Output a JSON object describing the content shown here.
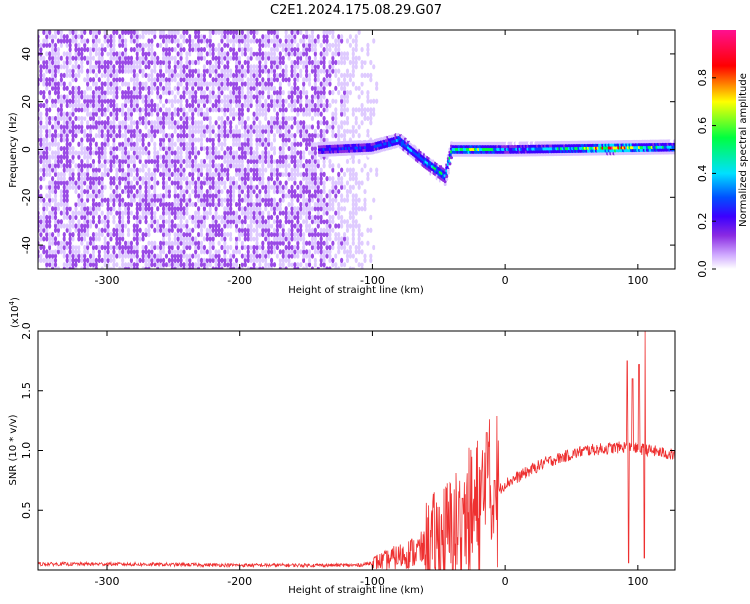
{
  "title": "C2E1.2024.175.08.29.G07",
  "chart_data": [
    {
      "type": "heatmap",
      "xlabel": "Height of straight line (km)",
      "ylabel": "Frequency (Hz)",
      "xlim": [
        -352,
        128
      ],
      "ylim": [
        -50,
        50
      ],
      "x_ticks": [
        -300,
        -200,
        -100,
        0,
        100
      ],
      "y_ticks": [
        -40,
        -20,
        0,
        20,
        40
      ],
      "colorbar": {
        "label": "Normalized spectral amplitude",
        "range": [
          0,
          1
        ],
        "ticks": [
          0.0,
          0.2,
          0.4,
          0.6,
          0.8
        ],
        "colors": [
          "#ffffff",
          "#d9c2ff",
          "#8a2be2",
          "#3b00ff",
          "#0050ff",
          "#00e0ff",
          "#00ff40",
          "#ffff00",
          "#ff0000",
          "#ff1090"
        ]
      },
      "features": {
        "noise_band": {
          "x_range": [
            -352,
            -95
          ],
          "freq_range": [
            -50,
            50
          ],
          "amplitude": 0.1
        },
        "signal_trace": [
          {
            "x": -140,
            "freq": 0
          },
          {
            "x": -100,
            "freq": 1
          },
          {
            "x": -80,
            "freq": 4
          },
          {
            "x": -60,
            "freq": -5
          },
          {
            "x": -45,
            "freq": -11
          },
          {
            "x": -40,
            "freq": 0
          },
          {
            "x": 0,
            "freq": 0
          },
          {
            "x": 128,
            "freq": 1
          }
        ],
        "signal_amplitude": [
          {
            "x": -140,
            "amp": 0.35
          },
          {
            "x": -100,
            "amp": 0.4
          },
          {
            "x": -60,
            "amp": 0.5
          },
          {
            "x": -20,
            "amp": 0.7
          },
          {
            "x": 0,
            "amp": 0.45
          },
          {
            "x": 50,
            "amp": 0.55
          },
          {
            "x": 80,
            "amp": 0.85
          },
          {
            "x": 100,
            "amp": 0.7
          },
          {
            "x": 128,
            "amp": 0.5
          }
        ]
      }
    },
    {
      "type": "line",
      "xlabel": "Height of straight line (km)",
      "ylabel": "SNR (10 * v/v)",
      "exponent_label": "(x10",
      "exponent_value": "4",
      "exponent_close": ")",
      "xlim": [
        -352,
        128
      ],
      "ylim": [
        0,
        2.0
      ],
      "x_ticks": [
        -300,
        -200,
        -100,
        0,
        100
      ],
      "y_ticks": [
        0.5,
        1.0,
        1.5,
        2.0
      ],
      "line_color": "#ee3030",
      "envelope": [
        {
          "x": -352,
          "snr": 0.05
        },
        {
          "x": -300,
          "snr": 0.05
        },
        {
          "x": -200,
          "snr": 0.04
        },
        {
          "x": -110,
          "snr": 0.04
        },
        {
          "x": -90,
          "snr": 0.08
        },
        {
          "x": -60,
          "snr": 0.18
        },
        {
          "x": -40,
          "snr": 0.3
        },
        {
          "x": -20,
          "snr": 0.5
        },
        {
          "x": 0,
          "snr": 0.72
        },
        {
          "x": 30,
          "snr": 0.9
        },
        {
          "x": 60,
          "snr": 1.0
        },
        {
          "x": 90,
          "snr": 1.03
        },
        {
          "x": 110,
          "snr": 1.0
        },
        {
          "x": 128,
          "snr": 0.96
        }
      ],
      "peaks": [
        {
          "x": -32,
          "snr": 0.6
        },
        {
          "x": -14,
          "snr": 1.15
        },
        {
          "x": -8,
          "snr": 0.75
        },
        {
          "x": 92,
          "snr": 1.75
        },
        {
          "x": 96,
          "snr": 1.6
        },
        {
          "x": 101,
          "snr": 1.72
        },
        {
          "x": 105,
          "snr": 2.0
        }
      ],
      "dips": [
        {
          "x": 93,
          "snr": 0.06
        },
        {
          "x": 105,
          "snr": 0.1
        }
      ]
    }
  ]
}
